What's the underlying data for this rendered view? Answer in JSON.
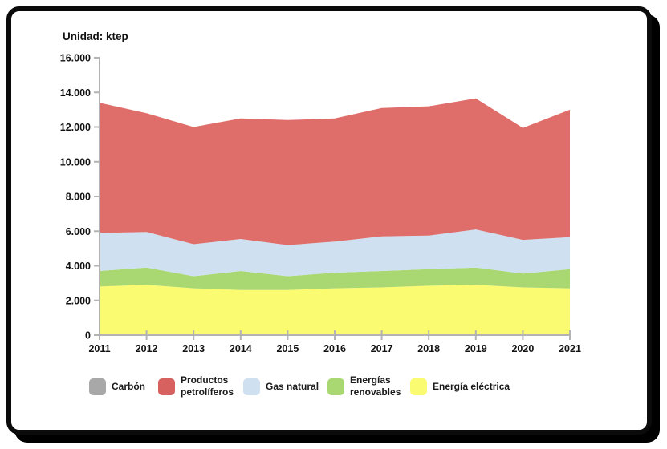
{
  "card": {
    "title": "Unidad: ktep"
  },
  "chart_data": {
    "type": "area",
    "stacked": true,
    "title": "Unidad: ktep",
    "unit": "ktep",
    "x": [
      "2011",
      "2012",
      "2013",
      "2014",
      "2015",
      "2016",
      "2017",
      "2018",
      "2019",
      "2020",
      "2021"
    ],
    "y_axis": {
      "min": 0,
      "max": 16000,
      "tick_step": 2000,
      "ticks": [
        {
          "value": 0,
          "label": "0"
        },
        {
          "value": 2000,
          "label": "2.000"
        },
        {
          "value": 4000,
          "label": "4.000"
        },
        {
          "value": 6000,
          "label": "6.000"
        },
        {
          "value": 8000,
          "label": "8.000"
        },
        {
          "value": 10000,
          "label": "10.000"
        },
        {
          "value": 12000,
          "label": "12.000"
        },
        {
          "value": 14000,
          "label": "14.000"
        },
        {
          "value": 16000,
          "label": "16.000"
        }
      ]
    },
    "grid": false,
    "legend_position": "bottom",
    "series": [
      {
        "id": "energia-electrica",
        "name": "Energía eléctrica",
        "color": "#fbfb72",
        "values": [
          2800,
          2900,
          2700,
          2600,
          2600,
          2700,
          2750,
          2850,
          2900,
          2750,
          2700
        ]
      },
      {
        "id": "energias-renovables",
        "name": "Energías renovables",
        "color": "#a9d873",
        "values": [
          900,
          1000,
          700,
          1100,
          800,
          900,
          950,
          950,
          1000,
          800,
          1100
        ]
      },
      {
        "id": "gas-natural",
        "name": "Gas natural",
        "color": "#cfe0f1",
        "values": [
          2200,
          2050,
          1850,
          1850,
          1800,
          1800,
          2000,
          1950,
          2200,
          1950,
          1850
        ]
      },
      {
        "id": "productos-petroliferos",
        "name": "Productos petrolíferos",
        "color": "#df6e6b",
        "values": [
          7500,
          6850,
          6750,
          6950,
          7200,
          7100,
          7400,
          7450,
          7550,
          6450,
          7350
        ]
      },
      {
        "id": "carbon",
        "name": "Carbón",
        "color": "#a8a8a8",
        "values": [
          0,
          0,
          0,
          0,
          0,
          0,
          0,
          0,
          0,
          0,
          0
        ]
      }
    ],
    "legend": [
      {
        "id": "carbon",
        "color": "#a8a8a8",
        "label_lines": [
          "Carbón"
        ]
      },
      {
        "id": "productos-petroliferos",
        "color": "#d7615e",
        "label_lines": [
          "Productos",
          "petrolíferos"
        ]
      },
      {
        "id": "gas-natural",
        "color": "#cfe0f1",
        "label_lines": [
          "Gas natural"
        ]
      },
      {
        "id": "energias-renovables",
        "color": "#a9d873",
        "label_lines": [
          "Energías",
          "renovables"
        ]
      },
      {
        "id": "energia-electrica",
        "color": "#fbfb72",
        "label_lines": [
          "Energía eléctrica"
        ]
      }
    ],
    "axis_color": "#b3b3b3",
    "text_color": "#121212"
  }
}
